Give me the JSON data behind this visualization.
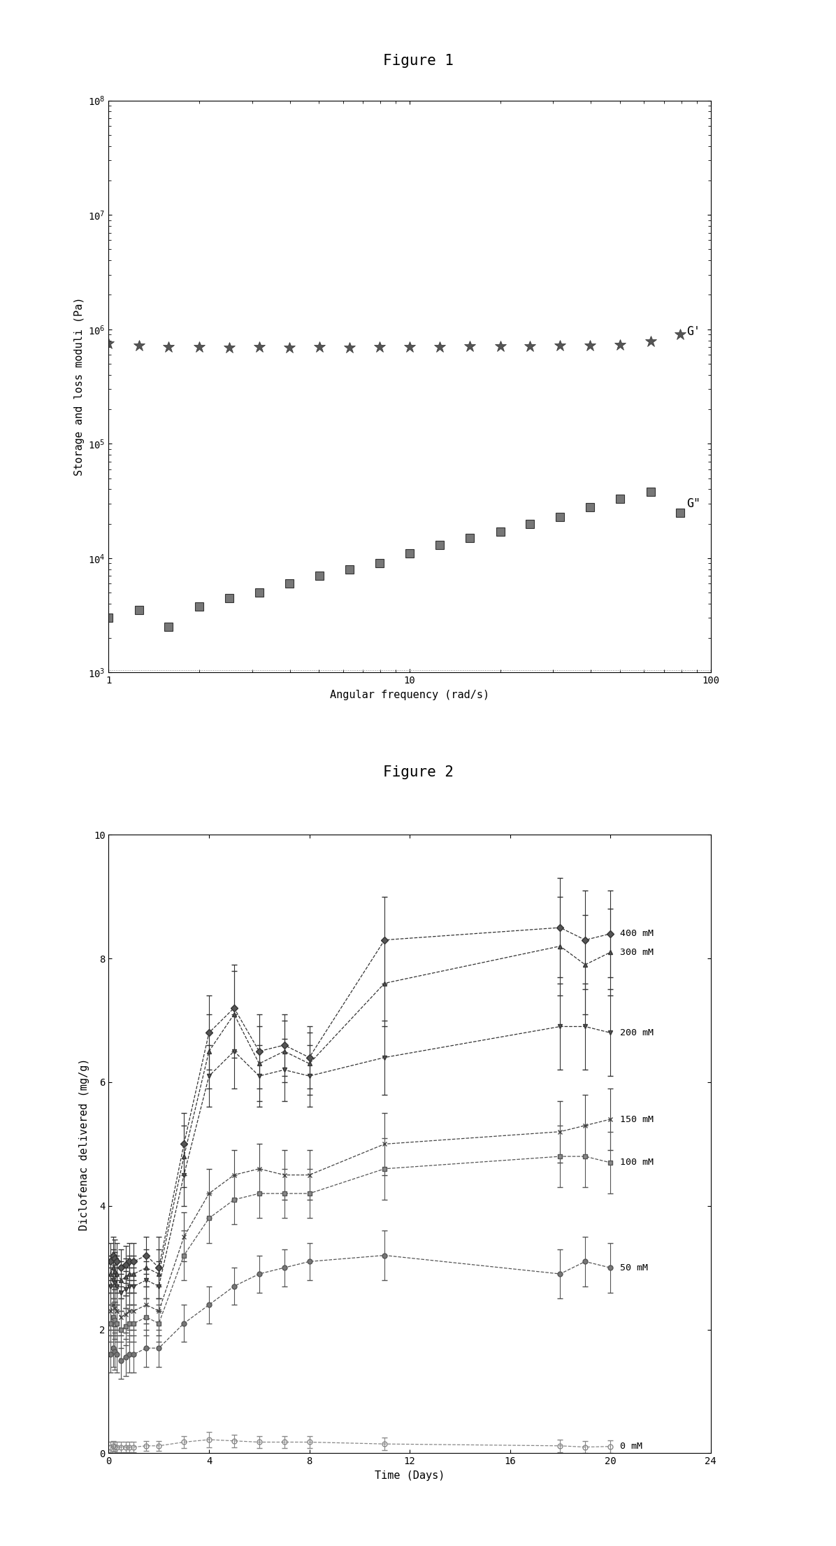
{
  "fig1_title": "Figure 1",
  "fig2_title": "Figure 2",
  "fig1_xlabel": "Angular frequency (rad/s)",
  "fig1_ylabel": "Storage and loss moduli (Pa)",
  "fig1_xlim": [
    1,
    100
  ],
  "fig1_ylim": [
    1000.0,
    100000000.0
  ],
  "fig1_G_prime_x": [
    1.0,
    1.26,
    1.58,
    2.0,
    2.51,
    3.16,
    3.98,
    5.01,
    6.31,
    7.94,
    10.0,
    12.6,
    15.8,
    20.0,
    25.1,
    31.6,
    39.8,
    50.1,
    63.1,
    79.4
  ],
  "fig1_G_prime_y": [
    750000.0,
    720000.0,
    700000.0,
    700000.0,
    690000.0,
    700000.0,
    690000.0,
    700000.0,
    690000.0,
    700000.0,
    700000.0,
    700000.0,
    710000.0,
    710000.0,
    710000.0,
    720000.0,
    720000.0,
    730000.0,
    780000.0,
    900000.0
  ],
  "fig1_G_dbl_prime_x": [
    1.0,
    1.26,
    1.58,
    2.0,
    2.51,
    3.16,
    3.98,
    5.01,
    6.31,
    7.94,
    10.0,
    12.6,
    15.8,
    20.0,
    25.1,
    31.6,
    39.8,
    50.1,
    63.1,
    79.4
  ],
  "fig1_G_dbl_prime_y": [
    3000.0,
    3500.0,
    2500.0,
    3800.0,
    4500.0,
    5000.0,
    6000.0,
    7000.0,
    8000.0,
    9000.0,
    11000.0,
    13000.0,
    15000.0,
    17000.0,
    20000.0,
    23000.0,
    28000.0,
    33000.0,
    38000.0,
    25000.0
  ],
  "fig2_xlabel": "Time (Days)",
  "fig2_ylabel": "Diclofenac delivered (mg/g)",
  "fig2_xlim": [
    0,
    24
  ],
  "fig2_ylim": [
    0,
    10
  ],
  "series_400mM": {
    "label": "400 mM",
    "x": [
      0.083,
      0.17,
      0.25,
      0.33,
      0.5,
      0.67,
      0.83,
      1.0,
      1.5,
      2.0,
      3.0,
      4.0,
      5.0,
      6.0,
      7.0,
      8.0,
      11.0,
      18.0,
      19.0,
      20.0
    ],
    "y": [
      3.1,
      3.2,
      3.15,
      3.1,
      3.0,
      3.05,
      3.1,
      3.1,
      3.2,
      3.0,
      5.0,
      6.8,
      7.2,
      6.5,
      6.6,
      6.4,
      8.3,
      8.5,
      8.3,
      8.4
    ],
    "yerr": [
      0.3,
      0.3,
      0.3,
      0.3,
      0.3,
      0.3,
      0.3,
      0.3,
      0.3,
      0.5,
      0.5,
      0.6,
      0.7,
      0.6,
      0.5,
      0.5,
      0.7,
      0.8,
      0.8,
      0.7
    ]
  },
  "series_300mM": {
    "label": "300 mM",
    "x": [
      0.083,
      0.17,
      0.25,
      0.33,
      0.5,
      0.67,
      0.83,
      1.0,
      1.5,
      2.0,
      3.0,
      4.0,
      5.0,
      6.0,
      7.0,
      8.0,
      11.0,
      18.0,
      19.0,
      20.0
    ],
    "y": [
      2.9,
      3.0,
      2.95,
      2.9,
      2.8,
      2.85,
      2.9,
      2.9,
      3.0,
      2.9,
      4.8,
      6.5,
      7.1,
      6.3,
      6.5,
      6.3,
      7.6,
      8.2,
      7.9,
      8.1
    ],
    "yerr": [
      0.3,
      0.3,
      0.3,
      0.3,
      0.3,
      0.3,
      0.3,
      0.3,
      0.3,
      0.4,
      0.5,
      0.6,
      0.7,
      0.6,
      0.5,
      0.5,
      0.7,
      0.8,
      0.8,
      0.7
    ]
  },
  "series_200mM": {
    "label": "200 mM",
    "x": [
      0.083,
      0.17,
      0.25,
      0.33,
      0.5,
      0.67,
      0.83,
      1.0,
      1.5,
      2.0,
      3.0,
      4.0,
      5.0,
      6.0,
      7.0,
      8.0,
      11.0,
      18.0,
      19.0,
      20.0
    ],
    "y": [
      2.7,
      2.8,
      2.75,
      2.7,
      2.6,
      2.65,
      2.7,
      2.7,
      2.8,
      2.7,
      4.5,
      6.1,
      6.5,
      6.1,
      6.2,
      6.1,
      6.4,
      6.9,
      6.9,
      6.8
    ],
    "yerr": [
      0.3,
      0.3,
      0.3,
      0.3,
      0.3,
      0.3,
      0.3,
      0.3,
      0.3,
      0.4,
      0.5,
      0.5,
      0.6,
      0.5,
      0.5,
      0.5,
      0.6,
      0.7,
      0.7,
      0.7
    ]
  },
  "series_150mM": {
    "label": "150 mM",
    "x": [
      0.083,
      0.17,
      0.25,
      0.33,
      0.5,
      0.67,
      0.83,
      1.0,
      1.5,
      2.0,
      3.0,
      4.0,
      5.0,
      6.0,
      7.0,
      8.0,
      11.0,
      18.0,
      19.0,
      20.0
    ],
    "y": [
      2.3,
      2.4,
      2.35,
      2.3,
      2.2,
      2.25,
      2.3,
      2.3,
      2.4,
      2.3,
      3.5,
      4.2,
      4.5,
      4.6,
      4.5,
      4.5,
      5.0,
      5.2,
      5.3,
      5.4
    ],
    "yerr": [
      0.3,
      0.3,
      0.3,
      0.3,
      0.3,
      0.3,
      0.3,
      0.3,
      0.3,
      0.4,
      0.4,
      0.4,
      0.4,
      0.4,
      0.4,
      0.4,
      0.5,
      0.5,
      0.5,
      0.5
    ]
  },
  "series_100mM": {
    "label": "100 mM",
    "x": [
      0.083,
      0.17,
      0.25,
      0.33,
      0.5,
      0.67,
      0.83,
      1.0,
      1.5,
      2.0,
      3.0,
      4.0,
      5.0,
      6.0,
      7.0,
      8.0,
      11.0,
      18.0,
      19.0,
      20.0
    ],
    "y": [
      2.1,
      2.2,
      2.15,
      2.1,
      2.0,
      2.05,
      2.1,
      2.1,
      2.2,
      2.1,
      3.2,
      3.8,
      4.1,
      4.2,
      4.2,
      4.2,
      4.6,
      4.8,
      4.8,
      4.7
    ],
    "yerr": [
      0.3,
      0.3,
      0.3,
      0.3,
      0.3,
      0.3,
      0.3,
      0.3,
      0.3,
      0.3,
      0.4,
      0.4,
      0.4,
      0.4,
      0.4,
      0.4,
      0.5,
      0.5,
      0.5,
      0.5
    ]
  },
  "series_50mM": {
    "label": "50 mM",
    "x": [
      0.083,
      0.17,
      0.25,
      0.33,
      0.5,
      0.67,
      0.83,
      1.0,
      1.5,
      2.0,
      3.0,
      4.0,
      5.0,
      6.0,
      7.0,
      8.0,
      11.0,
      18.0,
      19.0,
      20.0
    ],
    "y": [
      1.6,
      1.7,
      1.65,
      1.6,
      1.5,
      1.55,
      1.6,
      1.6,
      1.7,
      1.7,
      2.1,
      2.4,
      2.7,
      2.9,
      3.0,
      3.1,
      3.2,
      2.9,
      3.1,
      3.0
    ],
    "yerr": [
      0.3,
      0.3,
      0.3,
      0.3,
      0.3,
      0.3,
      0.3,
      0.3,
      0.3,
      0.3,
      0.3,
      0.3,
      0.3,
      0.3,
      0.3,
      0.3,
      0.4,
      0.4,
      0.4,
      0.4
    ]
  },
  "series_0mM": {
    "label": "0 mM",
    "x": [
      0.083,
      0.17,
      0.25,
      0.33,
      0.5,
      0.67,
      0.83,
      1.0,
      1.5,
      2.0,
      3.0,
      4.0,
      5.0,
      6.0,
      7.0,
      8.0,
      11.0,
      18.0,
      19.0,
      20.0
    ],
    "y": [
      0.1,
      0.12,
      0.11,
      0.1,
      0.1,
      0.1,
      0.1,
      0.1,
      0.12,
      0.12,
      0.18,
      0.22,
      0.2,
      0.18,
      0.18,
      0.18,
      0.15,
      0.12,
      0.1,
      0.11
    ],
    "yerr": [
      0.08,
      0.08,
      0.08,
      0.08,
      0.08,
      0.08,
      0.08,
      0.08,
      0.08,
      0.08,
      0.1,
      0.12,
      0.1,
      0.1,
      0.1,
      0.1,
      0.1,
      0.1,
      0.1,
      0.1
    ]
  },
  "background_color": "#ffffff"
}
